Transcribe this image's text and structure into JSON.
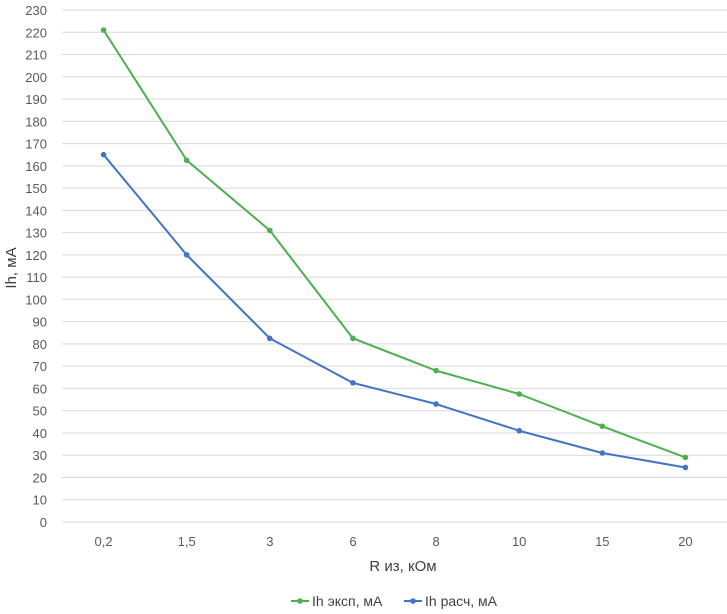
{
  "chart_data": {
    "type": "line",
    "categories": [
      "0,2",
      "1,5",
      "3",
      "6",
      "8",
      "10",
      "15",
      "20"
    ],
    "series": [
      {
        "name": "Ih эксп, мА",
        "color": "#4caf50",
        "values": [
          221,
          162.5,
          131,
          82.5,
          68,
          57.5,
          43,
          29
        ]
      },
      {
        "name": "Ih расч, мА",
        "color": "#4472c4",
        "values": [
          165,
          120,
          82.5,
          62.5,
          53,
          41,
          31,
          24.5
        ]
      }
    ],
    "title": "",
    "xlabel": "R из, кОм",
    "ylabel": "Ih, мА",
    "ylim": [
      0,
      230
    ],
    "ytick_step": 10,
    "grid": true,
    "legend_position": "bottom"
  }
}
